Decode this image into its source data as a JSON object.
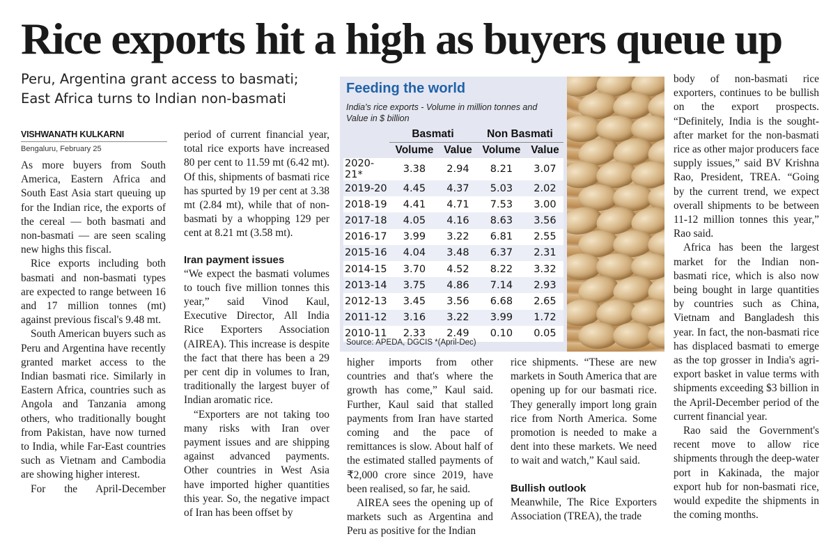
{
  "headline": "Rice exports hit a high as buyers queue up",
  "deck": "Peru, Argentina grant access to basmati; East Africa turns to Indian non-basmati",
  "byline": {
    "author": "VISHWANATH KULKARNI",
    "dateline": "Bengaluru, February 25"
  },
  "graphic": {
    "title": "Feeding the world",
    "subtitle": "India's rice exports - Volume in million tonnes and Value in $ billion",
    "groups": [
      "Basmati",
      "Non Basmati"
    ],
    "columns": [
      "Volume",
      "Value",
      "Volume",
      "Value"
    ],
    "rows": [
      {
        "year": "2020-21*",
        "values": [
          "3.38",
          "2.94",
          "8.21",
          "3.07"
        ]
      },
      {
        "year": "2019-20",
        "values": [
          "4.45",
          "4.37",
          "5.03",
          "2.02"
        ]
      },
      {
        "year": "2018-19",
        "values": [
          "4.41",
          "4.71",
          "7.53",
          "3.00"
        ]
      },
      {
        "year": "2017-18",
        "values": [
          "4.05",
          "4.16",
          "8.63",
          "3.56"
        ]
      },
      {
        "year": "2016-17",
        "values": [
          "3.99",
          "3.22",
          "6.81",
          "2.55"
        ]
      },
      {
        "year": "2015-16",
        "values": [
          "4.04",
          "3.48",
          "6.37",
          "2.31"
        ]
      },
      {
        "year": "2014-15",
        "values": [
          "3.70",
          "4.52",
          "8.22",
          "3.32"
        ]
      },
      {
        "year": "2013-14",
        "values": [
          "3.75",
          "4.86",
          "7.14",
          "2.93"
        ]
      },
      {
        "year": "2012-13",
        "values": [
          "3.45",
          "3.56",
          "6.68",
          "2.65"
        ]
      },
      {
        "year": "2011-12",
        "values": [
          "3.16",
          "3.22",
          "3.99",
          "1.72"
        ]
      },
      {
        "year": "2010-11",
        "values": [
          "2.33",
          "2.49",
          "0.10",
          "0.05"
        ]
      }
    ],
    "source": "Source: APEDA, DGCIS   *(April-Dec)"
  },
  "chart_data": {
    "type": "table",
    "title": "Feeding the world",
    "subtitle": "India's rice exports - Volume in million tonnes and Value in $ billion",
    "column_groups": [
      "Basmati",
      "Non Basmati"
    ],
    "columns": [
      "Volume",
      "Value",
      "Volume",
      "Value"
    ],
    "categories": [
      "2020-21*",
      "2019-20",
      "2018-19",
      "2017-18",
      "2016-17",
      "2015-16",
      "2014-15",
      "2013-14",
      "2012-13",
      "2011-12",
      "2010-11"
    ],
    "series": [
      {
        "name": "Basmati Volume",
        "values": [
          3.38,
          4.45,
          4.41,
          4.05,
          3.99,
          4.04,
          3.7,
          3.75,
          3.45,
          3.16,
          2.33
        ]
      },
      {
        "name": "Basmati Value",
        "values": [
          2.94,
          4.37,
          4.71,
          4.16,
          3.22,
          3.48,
          4.52,
          4.86,
          3.56,
          3.22,
          2.49
        ]
      },
      {
        "name": "Non Basmati Volume",
        "values": [
          8.21,
          5.03,
          7.53,
          8.63,
          6.81,
          6.37,
          8.22,
          7.14,
          6.68,
          3.99,
          0.1
        ]
      },
      {
        "name": "Non Basmati Value",
        "values": [
          3.07,
          2.02,
          3.0,
          3.56,
          2.55,
          2.31,
          3.32,
          2.93,
          2.65,
          1.72,
          0.05
        ]
      }
    ]
  },
  "body": {
    "col1": {
      "p1": "As more buyers from South America, Eastern Africa and South East Asia start queuing up for the Indian rice, the exports of the cereal — both basmati and non-basmati — are seen scaling new highs this fiscal.",
      "p2": "Rice exports including both basmati and non-basmati types are expected to range between 16 and 17 million tonnes (mt) against previous fiscal's 9.48 mt.",
      "p3": "South American buyers such as Peru and Argentina have recently granted market access to the Indian basmati rice. Similarly in Eastern Africa, countries such as Angola and Tanzania among others, who traditionally bought from Pakistan, have now turned to India, while Far-East countries such as Vietnam and Cambodia are showing higher interest.",
      "p4": "For the April-December"
    },
    "col2": {
      "p1": "period of current financial year, total rice exports have increased 80 per cent to 11.59 mt (6.42 mt). Of this, shipments of basmati rice has spurted by 19 per cent at 3.38 mt (2.84 mt), while that of non-basmati by a whopping 129 per cent at 8.21 mt (3.58 mt).",
      "subhead": "Iran payment issues",
      "p2": "“We expect the basmati volumes to touch five million tonnes this year,” said Vinod Kaul, Executive Director, All India Rice Exporters Association (AIREA). This increase is despite the fact that there has been a 29 per cent dip in volumes to Iran, traditionally the largest buyer of Indian aromatic rice.",
      "p3": "“Exporters are not taking too many risks with Iran over payment issues and are shipping against advanced payments. Other countries in West Asia have imported higher quantities this year. So, the negative impact of Iran has been offset by"
    },
    "col3": {
      "p1": "higher imports from other countries and that's where the growth has come,” Kaul said. Further, Kaul said that stalled payments from Iran have started coming and the pace of remittances is slow. About half of the estimated stalled payments of ₹2,000 crore since 2019, have been realised, so far, he said.",
      "p2": "AIREA sees the opening up of markets such as Argentina and Peru as positive for the Indian"
    },
    "col4": {
      "p1": "rice shipments. “These are new markets in South America that are opening up for our basmati rice. They generally import long grain rice from North America. Some promotion is needed to make a dent into these markets. We need to wait and watch,” Kaul said.",
      "subhead": "Bullish outlook",
      "p2": "Meanwhile, The Rice Exporters Association (TREA), the trade"
    },
    "col5": {
      "p1": "body of non-basmati rice exporters, continues to be bullish on the export prospects. “Definitely, India is the sought-after market for the non-basmati rice as other major producers face supply issues,” said BV Krishna Rao, President, TREA. “Going by the current trend, we expect overall shipments to be between 11-12 million tonnes this year,” Rao said.",
      "p2": "Africa has been the largest market for the Indian non-basmati rice, which is also now being bought in large quantities by countries such as China, Vietnam and Bangladesh this year. In fact, the non-basmati rice has displaced basmati to emerge as the top grosser in India's agri-export basket in value terms with shipments exceeding $3 billion in the April-December period of the current financial year.",
      "p3": "Rao said the Government's recent move to allow rice shipments through the deep-water port in Kakinada, the major export hub for non-basmati rice, would expedite the shipments in the coming months."
    }
  }
}
